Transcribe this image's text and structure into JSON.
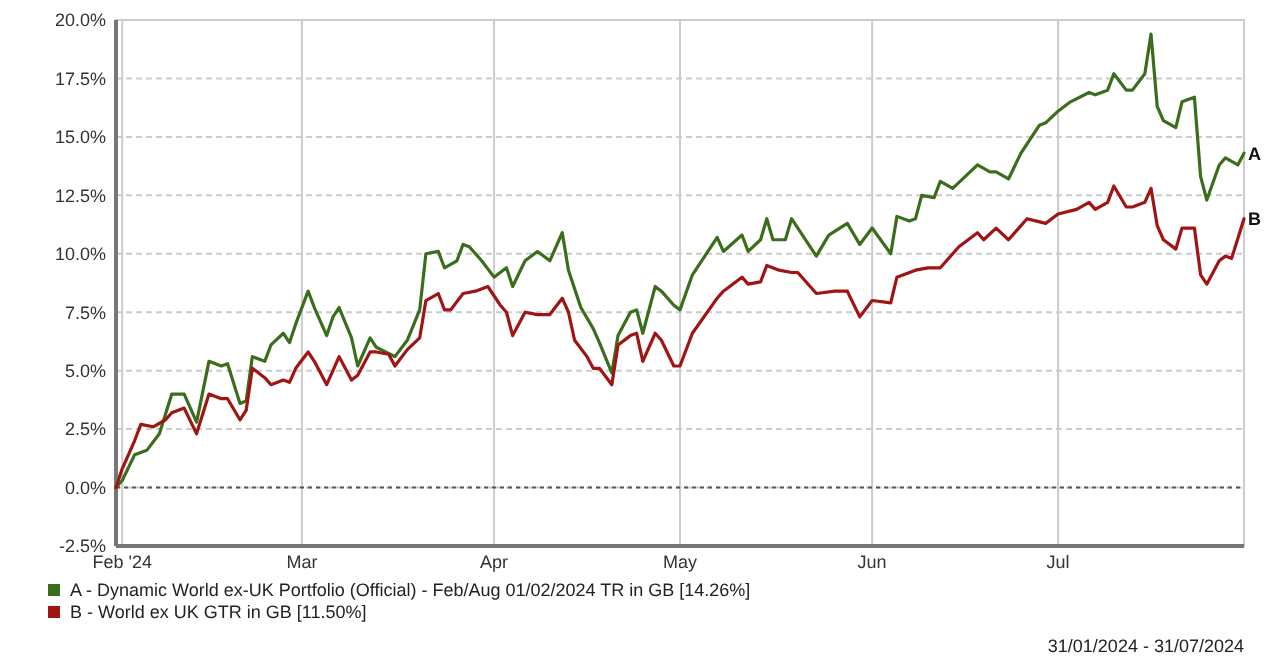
{
  "chart_data": {
    "type": "line",
    "x": [
      "2024-01-31",
      "2024-02-01",
      "2024-02-03",
      "2024-02-05",
      "2024-02-07",
      "2024-02-09",
      "2024-02-11",
      "2024-02-13",
      "2024-02-15",
      "2024-02-17",
      "2024-02-18",
      "2024-02-20",
      "2024-02-21",
      "2024-02-22",
      "2024-02-24",
      "2024-02-25",
      "2024-02-27",
      "2024-02-28",
      "2024-02-29",
      "2024-03-02",
      "2024-03-03",
      "2024-03-05",
      "2024-03-06",
      "2024-03-07",
      "2024-03-09",
      "2024-03-10",
      "2024-03-12",
      "2024-03-13",
      "2024-03-16",
      "2024-03-18",
      "2024-03-20",
      "2024-03-21",
      "2024-03-23",
      "2024-03-24",
      "2024-03-26",
      "2024-03-27",
      "2024-03-28",
      "2024-03-30",
      "2024-04-01",
      "2024-04-03",
      "2024-04-04",
      "2024-04-06",
      "2024-04-08",
      "2024-04-10",
      "2024-04-12",
      "2024-04-13",
      "2024-04-15",
      "2024-04-17",
      "2024-04-18",
      "2024-04-20",
      "2024-04-21",
      "2024-04-23",
      "2024-04-24",
      "2024-04-25",
      "2024-04-27",
      "2024-04-28",
      "2024-04-30",
      "2024-05-01",
      "2024-05-03",
      "2024-05-07",
      "2024-05-08",
      "2024-05-11",
      "2024-05-12",
      "2024-05-14",
      "2024-05-15",
      "2024-05-16",
      "2024-05-18",
      "2024-05-19",
      "2024-05-23",
      "2024-05-25",
      "2024-05-28",
      "2024-05-30",
      "2024-06-01",
      "2024-06-04",
      "2024-06-05",
      "2024-06-07",
      "2024-06-08",
      "2024-06-09",
      "2024-06-11",
      "2024-06-12",
      "2024-06-14",
      "2024-06-16",
      "2024-06-18",
      "2024-06-20",
      "2024-06-21",
      "2024-06-23",
      "2024-06-25",
      "2024-06-28",
      "2024-06-29",
      "2024-07-01",
      "2024-07-03",
      "2024-07-06",
      "2024-07-07",
      "2024-07-09",
      "2024-07-10",
      "2024-07-12",
      "2024-07-13",
      "2024-07-15",
      "2024-07-16",
      "2024-07-17",
      "2024-07-18",
      "2024-07-20",
      "2024-07-21",
      "2024-07-23",
      "2024-07-24",
      "2024-07-25",
      "2024-07-27",
      "2024-07-28",
      "2024-07-30",
      "2024-07-31"
    ],
    "series": [
      {
        "name": "A - Dynamic World ex-UK Portfolio (Official) - Feb/Aug 01/02/2024 TR in GB [14.26%]",
        "color": "#3b6e1c",
        "values": [
          0,
          0.3,
          1.4,
          1.6,
          2.3,
          4.0,
          4.0,
          2.8,
          5.4,
          5.2,
          5.3,
          3.6,
          3.7,
          5.6,
          5.4,
          6.1,
          6.6,
          6.2,
          7.0,
          8.4,
          7.7,
          6.5,
          7.3,
          7.7,
          6.4,
          5.2,
          6.4,
          6.0,
          5.6,
          6.3,
          7.6,
          10.0,
          10.1,
          9.4,
          9.7,
          10.4,
          10.3,
          9.7,
          9.0,
          9.4,
          8.6,
          9.7,
          10.1,
          9.7,
          10.9,
          9.3,
          7.7,
          6.8,
          6.2,
          4.9,
          6.5,
          7.5,
          7.6,
          6.6,
          8.6,
          8.4,
          7.8,
          7.6,
          9.1,
          10.7,
          10.1,
          10.8,
          10.1,
          10.6,
          11.5,
          10.6,
          10.6,
          11.5,
          9.9,
          10.8,
          11.3,
          10.4,
          11.1,
          10.0,
          11.6,
          11.4,
          11.5,
          12.5,
          12.4,
          13.1,
          12.8,
          13.3,
          13.8,
          13.5,
          13.5,
          13.2,
          14.3,
          15.5,
          15.6,
          16.1,
          16.5,
          16.9,
          16.8,
          17.0,
          17.7,
          17.0,
          17.0,
          17.7,
          19.4,
          16.3,
          15.7,
          15.4,
          16.5,
          16.7,
          13.3,
          12.3,
          13.8,
          14.1,
          13.8,
          14.3
        ]
      },
      {
        "name": "B - World ex UK GTR in GB [11.50%]",
        "color": "#a01414",
        "x": [
          "2024-01-31",
          "2024-02-01",
          "2024-02-03",
          "2024-02-04",
          "2024-02-06",
          "2024-02-08",
          "2024-02-09",
          "2024-02-11",
          "2024-02-13",
          "2024-02-15",
          "2024-02-17",
          "2024-02-18",
          "2024-02-20",
          "2024-02-21",
          "2024-02-22",
          "2024-02-24",
          "2024-02-25",
          "2024-02-27",
          "2024-02-28",
          "2024-02-29",
          "2024-03-02",
          "2024-03-03",
          "2024-03-05",
          "2024-03-06",
          "2024-03-07",
          "2024-03-09",
          "2024-03-10",
          "2024-03-12",
          "2024-03-13",
          "2024-03-15",
          "2024-03-16",
          "2024-03-18",
          "2024-03-20",
          "2024-03-21",
          "2024-03-23",
          "2024-03-24",
          "2024-03-25",
          "2024-03-27",
          "2024-03-29",
          "2024-03-31",
          "2024-04-02",
          "2024-04-03",
          "2024-04-04",
          "2024-04-06",
          "2024-04-08",
          "2024-04-10",
          "2024-04-12",
          "2024-04-13",
          "2024-04-14",
          "2024-04-16",
          "2024-04-17",
          "2024-04-18",
          "2024-04-20",
          "2024-04-21",
          "2024-04-23",
          "2024-04-24",
          "2024-04-25",
          "2024-04-27",
          "2024-04-28",
          "2024-04-30",
          "2024-05-01",
          "2024-05-03",
          "2024-05-07",
          "2024-05-08",
          "2024-05-11",
          "2024-05-12",
          "2024-05-14",
          "2024-05-15",
          "2024-05-17",
          "2024-05-19",
          "2024-05-20",
          "2024-05-23",
          "2024-05-26",
          "2024-05-28",
          "2024-05-30",
          "2024-06-01",
          "2024-06-04",
          "2024-06-05",
          "2024-06-08",
          "2024-06-10",
          "2024-06-12",
          "2024-06-15",
          "2024-06-18",
          "2024-06-19",
          "2024-06-21",
          "2024-06-23",
          "2024-06-26",
          "2024-06-29",
          "2024-07-01",
          "2024-07-04",
          "2024-07-06",
          "2024-07-07",
          "2024-07-09",
          "2024-07-10",
          "2024-07-12",
          "2024-07-13",
          "2024-07-15",
          "2024-07-16",
          "2024-07-17",
          "2024-07-18",
          "2024-07-20",
          "2024-07-21",
          "2024-07-23",
          "2024-07-24",
          "2024-07-25",
          "2024-07-27",
          "2024-07-28",
          "2024-07-29",
          "2024-07-31"
        ],
        "values": [
          0,
          0.8,
          2.0,
          2.7,
          2.6,
          2.9,
          3.2,
          3.4,
          2.3,
          4.0,
          3.8,
          3.8,
          2.9,
          3.3,
          5.1,
          4.7,
          4.4,
          4.6,
          4.5,
          5.1,
          5.8,
          5.4,
          4.4,
          5.0,
          5.6,
          4.6,
          4.8,
          5.8,
          5.8,
          5.7,
          5.2,
          5.9,
          6.4,
          8.0,
          8.3,
          7.6,
          7.6,
          8.3,
          8.4,
          8.6,
          7.8,
          7.5,
          6.5,
          7.5,
          7.4,
          7.4,
          8.1,
          7.5,
          6.3,
          5.6,
          5.1,
          5.1,
          4.4,
          6.1,
          6.5,
          6.6,
          5.4,
          6.6,
          6.3,
          5.2,
          5.2,
          6.6,
          8.1,
          8.4,
          9.0,
          8.7,
          8.8,
          9.5,
          9.3,
          9.2,
          9.2,
          8.3,
          8.4,
          8.4,
          7.3,
          8.0,
          7.9,
          9.0,
          9.3,
          9.4,
          9.4,
          10.3,
          10.9,
          10.6,
          11.1,
          10.6,
          11.5,
          11.3,
          11.7,
          11.9,
          12.2,
          11.9,
          12.2,
          12.9,
          12.0,
          12.0,
          12.2,
          12.8,
          11.2,
          10.6,
          10.2,
          11.1,
          11.1,
          9.1,
          8.7,
          9.7,
          9.9,
          9.8,
          11.5
        ]
      }
    ],
    "xlim": [
      "2024-01-31",
      "2024-07-31"
    ],
    "xticks": [
      {
        "value": "2024-02-01",
        "label": "Feb '24"
      },
      {
        "value": "2024-03-01",
        "label": "Mar"
      },
      {
        "value": "2024-04-01",
        "label": "Apr"
      },
      {
        "value": "2024-05-01",
        "label": "May"
      },
      {
        "value": "2024-06-01",
        "label": "Jun"
      },
      {
        "value": "2024-07-01",
        "label": "Jul"
      }
    ],
    "ylim": [
      -2.5,
      20
    ],
    "yticks": [
      {
        "value": -2.5,
        "label": "-2.5%"
      },
      {
        "value": 0,
        "label": "0.0%"
      },
      {
        "value": 2.5,
        "label": "2.5%"
      },
      {
        "value": 5,
        "label": "5.0%"
      },
      {
        "value": 7.5,
        "label": "7.5%"
      },
      {
        "value": 10,
        "label": "10.0%"
      },
      {
        "value": 12.5,
        "label": "12.5%"
      },
      {
        "value": 15,
        "label": "15.0%"
      },
      {
        "value": 17.5,
        "label": "17.5%"
      },
      {
        "value": 20,
        "label": "20.0%"
      }
    ],
    "ref_lines": [
      {
        "axis": "y",
        "value": 0,
        "color": "#555555",
        "line_style": "dotted"
      }
    ],
    "annotations": [
      {
        "text": "A",
        "x": "2024-07-31",
        "y": 14.3
      },
      {
        "text": "B",
        "x": "2024-07-31",
        "y": 11.5
      },
      "31/01/2024 - 31/07/2024"
    ],
    "grid": true,
    "legend": "bottom left",
    "marker": "none",
    "line_style": "solid"
  }
}
